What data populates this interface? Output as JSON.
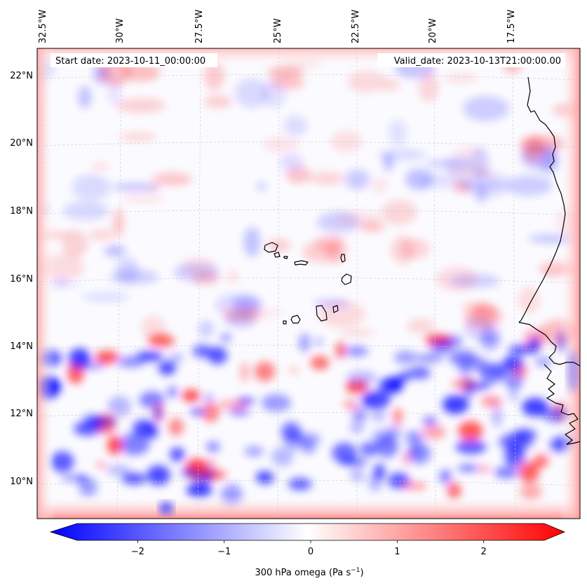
{
  "map": {
    "start_date_label": "Start date: 2023-10-11_00:00:00",
    "valid_date_label": "Valid_date: 2023-10-13T21:00:00.00",
    "lon_labels": [
      "32.5°W",
      "30°W",
      "27.5°W",
      "25°W",
      "22.5°W",
      "20°W",
      "17.5°W"
    ],
    "lat_labels": [
      "22°N",
      "20°N",
      "18°N",
      "16°N",
      "14°N",
      "12°N",
      "10°N"
    ],
    "field_colors": {
      "negative": "#0000ff",
      "neutral": "#ffffff",
      "positive": "#ff0000"
    },
    "coastline_color": "#000000",
    "gridline_color": "#c8c8c8"
  },
  "colorbar": {
    "label_prefix": "300 hPa omega (Pa s",
    "label_exp": "−1",
    "label_suffix": ")",
    "ticks": [
      {
        "value": -2,
        "label": "−2"
      },
      {
        "value": -1,
        "label": "−1"
      },
      {
        "value": 0,
        "label": "0"
      },
      {
        "value": 1,
        "label": "1"
      },
      {
        "value": 2,
        "label": "2"
      }
    ],
    "range": [
      -2.7,
      2.7
    ],
    "extend": "both"
  }
}
